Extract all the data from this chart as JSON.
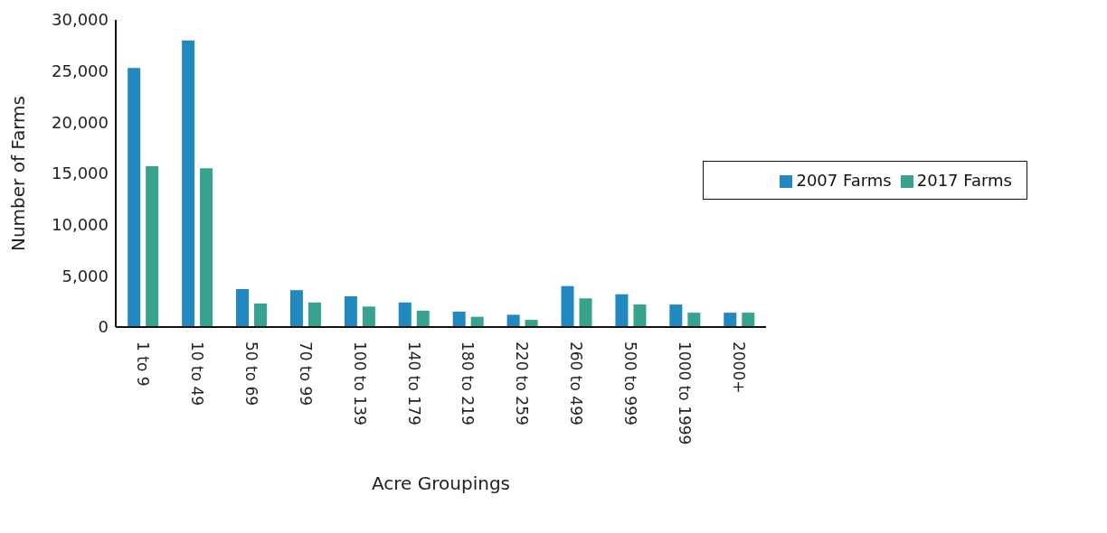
{
  "chart_data": {
    "type": "bar",
    "xlabel": "Acre Groupings",
    "ylabel": "Number of Farms",
    "categories": [
      "1 to 9",
      "10 to 49",
      "50 to 69",
      "70 to 99",
      "100 to 139",
      "140 to 179",
      "180 to 219",
      "220 to 259",
      "260 to 499",
      "500 to 999",
      "1000 to 1999",
      "2000+"
    ],
    "series": [
      {
        "name": "2007 Farms",
        "color": "#2188c0",
        "values": [
          25300,
          28000,
          3700,
          3600,
          3000,
          2400,
          1500,
          1200,
          4000,
          3200,
          2200,
          1400
        ]
      },
      {
        "name": "2017 Farms",
        "color": "#37a28e",
        "values": [
          15700,
          15500,
          2300,
          2400,
          2000,
          1600,
          1000,
          700,
          2800,
          2200,
          1400,
          1400
        ]
      }
    ],
    "ylim": [
      0,
      30000
    ],
    "yticks": [
      {
        "value": 0,
        "label": "0"
      },
      {
        "value": 5000,
        "label": "5,000"
      },
      {
        "value": 10000,
        "label": "10,000"
      },
      {
        "value": 15000,
        "label": "15,000"
      },
      {
        "value": 20000,
        "label": "20,000"
      },
      {
        "value": 25000,
        "label": "25,000"
      },
      {
        "value": 30000,
        "label": "30,000"
      }
    ],
    "grid": false,
    "legend": "right"
  }
}
